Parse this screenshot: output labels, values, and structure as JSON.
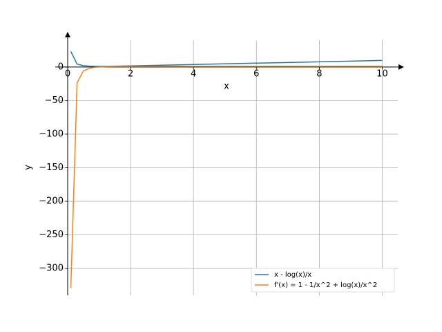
{
  "chart_data": {
    "type": "line",
    "x_label": "x",
    "y_label": "y",
    "x": [
      0.1,
      0.3,
      0.5,
      0.7,
      0.9,
      1.1,
      1.5,
      2,
      3,
      4,
      5,
      6,
      7,
      8,
      9,
      10
    ],
    "series": [
      {
        "name": "x - log(x)/x",
        "color": "#1f77b4",
        "values": [
          23.13,
          4.31,
          1.89,
          1.21,
          1.02,
          1.01,
          1.23,
          1.65,
          2.63,
          3.65,
          4.68,
          5.7,
          6.72,
          7.74,
          8.76,
          9.77
        ]
      },
      {
        "name": "f'(x) = 1 - 1/x^2 + log(x)/x^2",
        "color": "#ff7f0e",
        "values": [
          -329.26,
          -23.49,
          -5.77,
          -1.77,
          -0.36,
          0.25,
          0.74,
          0.92,
          1.01,
          1.02,
          1.02,
          1.02,
          1.02,
          1.02,
          1.01,
          1.01
        ]
      }
    ],
    "xlim": [
      -0.395,
      10.495
    ],
    "ylim": [
      -340,
      40
    ],
    "xticks": [
      0,
      2,
      4,
      6,
      8,
      10
    ],
    "yticks": [
      0,
      {
        "value": -50,
        "label": "−50"
      },
      {
        "value": -100,
        "label": "−100"
      },
      {
        "value": -150,
        "label": "−150"
      },
      {
        "value": -200,
        "label": "−200"
      },
      {
        "value": -250,
        "label": "−250"
      },
      {
        "value": -300,
        "label": "−300"
      }
    ],
    "grid": true,
    "legend": "lower right"
  }
}
